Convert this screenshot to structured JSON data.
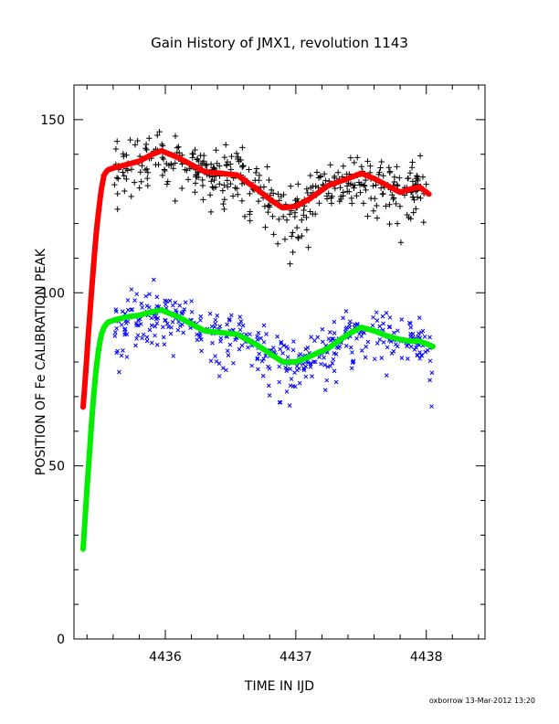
{
  "chart_data": {
    "type": "scatter",
    "title": "Gain History of JMX1, revolution 1143",
    "xlabel": "TIME IN IJD",
    "ylabel": "POSITION OF Fe CALIBRATION PEAK",
    "footer": "oxborrow 13-Mar-2012 13:20",
    "xlim": [
      4435.3,
      4438.45
    ],
    "ylim": [
      0,
      160
    ],
    "x_ticks": [
      4436,
      4437,
      4438
    ],
    "x_tick_labels": [
      "4436",
      "4437",
      "4438"
    ],
    "y_ticks": [
      0,
      50,
      100,
      150
    ],
    "y_tick_labels": [
      "0",
      "50",
      "100",
      "150"
    ],
    "grid": false,
    "colors": {
      "upper_points": "#000000",
      "upper_fit": "#ff0000",
      "lower_points": "#0000ff",
      "lower_fit": "#00ee00"
    },
    "series": [
      {
        "marker": "plus",
        "color": "#000000",
        "scatter": 6.0,
        "x_range": [
          4435.6,
          4438.0
        ],
        "trend": [
          [
            4435.6,
            135
          ],
          [
            4435.8,
            137
          ],
          [
            4435.95,
            141
          ],
          [
            4436.1,
            138
          ],
          [
            4436.3,
            135
          ],
          [
            4436.55,
            134
          ],
          [
            4436.7,
            130
          ],
          [
            4436.9,
            124.5
          ],
          [
            4437.05,
            125
          ],
          [
            4437.25,
            130
          ],
          [
            4437.5,
            134
          ],
          [
            4437.7,
            132
          ],
          [
            4437.85,
            129
          ],
          [
            4437.95,
            131
          ],
          [
            4438.02,
            128.5
          ]
        ]
      },
      {
        "marker": "plus",
        "color": "#ff0000",
        "line": true,
        "x": [
          4435.37,
          4435.39,
          4435.41,
          4435.43,
          4435.45,
          4435.47,
          4435.49,
          4435.51,
          4435.53,
          4435.56,
          4435.6,
          4435.7,
          4435.8,
          4435.9,
          4435.97,
          4436.1,
          4436.3,
          4436.55,
          4436.7,
          4436.8,
          4436.9,
          4437.0,
          4437.1,
          4437.25,
          4437.4,
          4437.5,
          4437.6,
          4437.7,
          4437.8,
          4437.88,
          4437.95,
          4438.02
        ],
        "values": [
          67,
          77,
          88,
          98,
          108,
          117,
          124,
          130,
          134,
          135.5,
          136,
          137,
          138,
          140,
          141,
          139,
          135,
          134,
          130,
          127,
          124.5,
          125,
          127,
          131,
          133,
          134.5,
          133,
          131,
          129,
          130,
          130.5,
          128.5
        ]
      },
      {
        "marker": "x",
        "color": "#0000ff",
        "scatter": 5.5,
        "x_range": [
          4435.6,
          4438.05
        ],
        "trend": [
          [
            4435.6,
            92
          ],
          [
            4435.8,
            93.5
          ],
          [
            4435.95,
            95
          ],
          [
            4436.1,
            93
          ],
          [
            4436.3,
            89
          ],
          [
            4436.55,
            88
          ],
          [
            4436.7,
            85
          ],
          [
            4436.9,
            80
          ],
          [
            4437.05,
            80
          ],
          [
            4437.25,
            84
          ],
          [
            4437.5,
            90
          ],
          [
            4437.7,
            88
          ],
          [
            4437.85,
            86
          ],
          [
            4437.95,
            86
          ],
          [
            4438.05,
            84
          ]
        ]
      },
      {
        "marker": "plus",
        "color": "#00ee00",
        "line": true,
        "x": [
          4435.37,
          4435.39,
          4435.41,
          4435.43,
          4435.45,
          4435.47,
          4435.49,
          4435.51,
          4435.53,
          4435.56,
          4435.6,
          4435.7,
          4435.8,
          4435.9,
          4435.97,
          4436.1,
          4436.3,
          4436.55,
          4436.7,
          4436.8,
          4436.9,
          4437.0,
          4437.1,
          4437.25,
          4437.4,
          4437.5,
          4437.6,
          4437.7,
          4437.8,
          4437.88,
          4437.95,
          4438.05
        ],
        "values": [
          26,
          38,
          49,
          60,
          70,
          78,
          84,
          88,
          90,
          91.5,
          92,
          93,
          93.5,
          94.5,
          95,
          93,
          89,
          88,
          85,
          82.5,
          80,
          80,
          81.5,
          84,
          88,
          90,
          89,
          87.5,
          86.5,
          86,
          86,
          84.5
        ]
      }
    ]
  }
}
